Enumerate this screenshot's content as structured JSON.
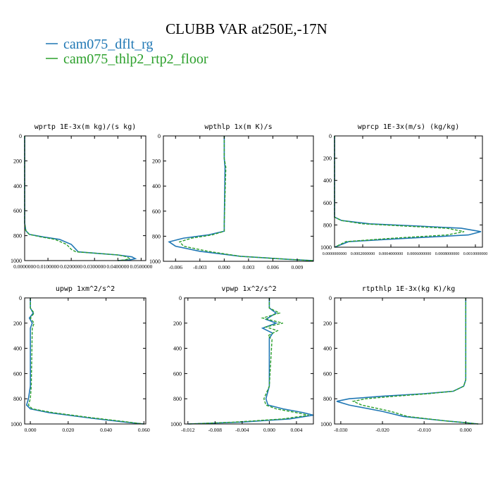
{
  "figure": {
    "title": "CLUBB VAR at250E,-17N",
    "legend": [
      {
        "label": "cam075_dflt_rg",
        "color": "#1f77b4"
      },
      {
        "label": "cam075_thlp2_rtp2_floor",
        "color": "#2ca02c"
      }
    ]
  },
  "chart_data": [
    {
      "type": "line",
      "title": "wprtp  1E-3x(m kg)/(s kg)",
      "xlim": [
        0,
        0.052
      ],
      "ylim": [
        0,
        1000
      ],
      "y_inverted": true,
      "xticks": [
        0,
        0.01,
        0.02,
        0.03,
        0.04,
        0.05
      ],
      "xtick_labels": [
        "0.0000000",
        "0.0100000",
        "0.0200000",
        "0.0300000",
        "0.0400000",
        "0.0500000"
      ],
      "yticks": [
        0,
        200,
        400,
        600,
        800,
        1000
      ],
      "ytick_labels": [
        "0",
        "200",
        "400",
        "600",
        "800",
        "1000"
      ],
      "series": [
        {
          "name": "cam075_dflt_rg",
          "points": [
            [
              0,
              0
            ],
            [
              0,
              700
            ],
            [
              0.0005,
              760
            ],
            [
              0.002,
              790
            ],
            [
              0.008,
              810
            ],
            [
              0.015,
              830
            ],
            [
              0.02,
              870
            ],
            [
              0.022,
              910
            ],
            [
              0.023,
              930
            ],
            [
              0.03,
              940
            ],
            [
              0.04,
              955
            ],
            [
              0.046,
              970
            ],
            [
              0.0475,
              985
            ],
            [
              0.045,
              995
            ],
            [
              0.04,
              1000
            ]
          ]
        },
        {
          "name": "cam075_thlp2_rtp2_floor",
          "points": [
            [
              0,
              0
            ],
            [
              0,
              700
            ],
            [
              0.0005,
              760
            ],
            [
              0.002,
              790
            ],
            [
              0.007,
              810
            ],
            [
              0.013,
              830
            ],
            [
              0.018,
              870
            ],
            [
              0.02,
              910
            ],
            [
              0.022,
              930
            ],
            [
              0.03,
              940
            ],
            [
              0.04,
              955
            ],
            [
              0.044,
              970
            ],
            [
              0.045,
              985
            ],
            [
              0.043,
              995
            ],
            [
              0.04,
              1000
            ]
          ]
        }
      ]
    },
    {
      "type": "line",
      "title": "wpthlp  1x(m K)/s",
      "xlim": [
        -0.0075,
        0.011
      ],
      "ylim": [
        0,
        1000
      ],
      "y_inverted": true,
      "xticks": [
        -0.006,
        -0.003,
        0,
        0.003,
        0.006,
        0.009
      ],
      "xtick_labels": [
        "-0.006",
        "-0.003",
        "0.000",
        "0.003",
        "0.006",
        "0.009"
      ],
      "yticks": [
        0,
        200,
        400,
        600,
        800,
        1000
      ],
      "ytick_labels": [
        "0",
        "200",
        "400",
        "600",
        "800",
        "1000"
      ],
      "series": [
        {
          "name": "cam075_dflt_rg",
          "points": [
            [
              0,
              0
            ],
            [
              0,
              180
            ],
            [
              0.0001,
              250
            ],
            [
              0,
              700
            ],
            [
              0,
              760
            ],
            [
              -0.002,
              790
            ],
            [
              -0.005,
              815
            ],
            [
              -0.0068,
              845
            ],
            [
              -0.006,
              880
            ],
            [
              -0.003,
              920
            ],
            [
              0.002,
              960
            ],
            [
              0.008,
              985
            ],
            [
              0.011,
              995
            ]
          ]
        },
        {
          "name": "cam075_thlp2_rtp2_floor",
          "points": [
            [
              0,
              0
            ],
            [
              0,
              180
            ],
            [
              0.0002,
              250
            ],
            [
              0,
              700
            ],
            [
              0,
              760
            ],
            [
              -0.0015,
              790
            ],
            [
              -0.004,
              815
            ],
            [
              -0.0055,
              845
            ],
            [
              -0.005,
              880
            ],
            [
              -0.002,
              920
            ],
            [
              0.002,
              960
            ],
            [
              0.008,
              985
            ],
            [
              0.011,
              995
            ]
          ]
        }
      ]
    },
    {
      "type": "line",
      "title": "wprcp  1E-3x(m/s) (kg/kg)",
      "xlim": [
        0,
        0.00105
      ],
      "ylim": [
        0,
        1000
      ],
      "y_inverted": true,
      "xticks": [
        0,
        0.0002,
        0.0004,
        0.0006,
        0.0008,
        0.001
      ],
      "xtick_labels": [
        "0.0000000000",
        "0.0002000000",
        "0.0004000000",
        "0.0006000000",
        "0.0008000000",
        "0.0010000000"
      ],
      "yticks": [
        0,
        200,
        400,
        600,
        800,
        1000
      ],
      "ytick_labels": [
        "0",
        "200",
        "400",
        "600",
        "800",
        "1000"
      ],
      "series": [
        {
          "name": "cam075_dflt_rg",
          "points": [
            [
              0,
              0
            ],
            [
              0,
              730
            ],
            [
              5e-05,
              760
            ],
            [
              0.00025,
              790
            ],
            [
              0.0006,
              810
            ],
            [
              0.0009,
              830
            ],
            [
              0.00104,
              860
            ],
            [
              0.00095,
              890
            ],
            [
              0.0005,
              920
            ],
            [
              0.0001,
              950
            ],
            [
              0,
              1000
            ]
          ]
        },
        {
          "name": "cam075_thlp2_rtp2_floor",
          "points": [
            [
              0,
              0
            ],
            [
              0,
              730
            ],
            [
              5e-05,
              760
            ],
            [
              0.0002,
              790
            ],
            [
              0.0005,
              810
            ],
            [
              0.0008,
              830
            ],
            [
              0.00092,
              860
            ],
            [
              0.0008,
              890
            ],
            [
              0.0004,
              920
            ],
            [
              8e-05,
              950
            ],
            [
              0,
              1000
            ]
          ]
        }
      ]
    },
    {
      "type": "line",
      "title": "upwp  1xm^2/s^2",
      "xlim": [
        -0.003,
        0.061
      ],
      "ylim": [
        0,
        1000
      ],
      "y_inverted": true,
      "xticks": [
        0,
        0.02,
        0.04,
        0.06
      ],
      "xtick_labels": [
        "0.000",
        "0.020",
        "0.040",
        "0.060"
      ],
      "yticks": [
        0,
        200,
        400,
        600,
        800,
        1000
      ],
      "ytick_labels": [
        "0",
        "200",
        "400",
        "600",
        "800",
        "1000"
      ],
      "series": [
        {
          "name": "cam075_dflt_rg",
          "points": [
            [
              0,
              0
            ],
            [
              0,
              80
            ],
            [
              0.0015,
              120
            ],
            [
              -0.0005,
              160
            ],
            [
              0.001,
              200
            ],
            [
              0,
              240
            ],
            [
              0,
              700
            ],
            [
              -0.001,
              800
            ],
            [
              -0.002,
              850
            ],
            [
              0,
              880
            ],
            [
              0.01,
              910
            ],
            [
              0.03,
              950
            ],
            [
              0.05,
              985
            ],
            [
              0.06,
              1000
            ]
          ]
        },
        {
          "name": "cam075_thlp2_rtp2_floor",
          "points": [
            [
              0,
              0
            ],
            [
              0,
              80
            ],
            [
              0.002,
              120
            ],
            [
              0,
              160
            ],
            [
              0.002,
              200
            ],
            [
              0.001,
              240
            ],
            [
              0.0005,
              700
            ],
            [
              0,
              800
            ],
            [
              -0.001,
              850
            ],
            [
              0.001,
              880
            ],
            [
              0.012,
              910
            ],
            [
              0.032,
              950
            ],
            [
              0.052,
              985
            ],
            [
              0.06,
              1000
            ]
          ]
        }
      ]
    },
    {
      "type": "line",
      "title": "vpwp  1x^2/s^2",
      "xlim": [
        -0.0125,
        0.0065
      ],
      "ylim": [
        0,
        1000
      ],
      "y_inverted": true,
      "xticks": [
        -0.012,
        -0.008,
        -0.004,
        0,
        0.004
      ],
      "xtick_labels": [
        "-0.012",
        "-0.008",
        "-0.004",
        "0.000",
        "0.004"
      ],
      "yticks": [
        0,
        200,
        400,
        600,
        800,
        1000
      ],
      "ytick_labels": [
        "0",
        "200",
        "400",
        "600",
        "800",
        "1000"
      ],
      "series": [
        {
          "name": "cam075_dflt_rg",
          "points": [
            [
              0,
              0
            ],
            [
              0,
              80
            ],
            [
              0.001,
              120
            ],
            [
              -0.0005,
              170
            ],
            [
              0.001,
              200
            ],
            [
              -0.001,
              240
            ],
            [
              0.0005,
              280
            ],
            [
              0,
              320
            ],
            [
              0,
              700
            ],
            [
              -0.0005,
              800
            ],
            [
              -0.0002,
              850
            ],
            [
              0.002,
              880
            ],
            [
              0.005,
              910
            ],
            [
              0.0065,
              930
            ],
            [
              0.003,
              960
            ],
            [
              -0.004,
              985
            ],
            [
              -0.012,
              1000
            ]
          ]
        },
        {
          "name": "cam075_thlp2_rtp2_floor",
          "points": [
            [
              0,
              0
            ],
            [
              0,
              80
            ],
            [
              0.0015,
              120
            ],
            [
              -0.001,
              160
            ],
            [
              0.002,
              200
            ],
            [
              -0.0005,
              230
            ],
            [
              0.0012,
              260
            ],
            [
              -0.0002,
              300
            ],
            [
              0.0004,
              330
            ],
            [
              0,
              700
            ],
            [
              -0.0008,
              800
            ],
            [
              -0.0005,
              850
            ],
            [
              0.001,
              880
            ],
            [
              0.004,
              910
            ],
            [
              0.0058,
              930
            ],
            [
              0.002,
              960
            ],
            [
              -0.005,
              985
            ],
            [
              -0.012,
              1000
            ]
          ]
        }
      ]
    },
    {
      "type": "line",
      "title": "rtpthlp  1E-3x(kg K)/kg",
      "xlim": [
        -0.0315,
        0.004
      ],
      "ylim": [
        0,
        1000
      ],
      "y_inverted": true,
      "xticks": [
        -0.03,
        -0.02,
        -0.01,
        0
      ],
      "xtick_labels": [
        "-0.030",
        "-0.020",
        "-0.010",
        "0.000"
      ],
      "yticks": [
        0,
        200,
        400,
        600,
        800,
        1000
      ],
      "ytick_labels": [
        "0",
        "200",
        "400",
        "600",
        "800",
        "1000"
      ],
      "series": [
        {
          "name": "cam075_dflt_rg",
          "points": [
            [
              0,
              0
            ],
            [
              0,
              650
            ],
            [
              -0.0005,
              700
            ],
            [
              -0.003,
              740
            ],
            [
              -0.01,
              760
            ],
            [
              -0.02,
              780
            ],
            [
              -0.028,
              800
            ],
            [
              -0.031,
              820
            ],
            [
              -0.028,
              850
            ],
            [
              -0.02,
              900
            ],
            [
              -0.015,
              940
            ],
            [
              -0.005,
              975
            ],
            [
              0,
              990
            ],
            [
              0.003,
              1000
            ]
          ]
        },
        {
          "name": "cam075_thlp2_rtp2_floor",
          "points": [
            [
              0,
              0
            ],
            [
              0,
              650
            ],
            [
              -0.0005,
              700
            ],
            [
              -0.003,
              740
            ],
            [
              -0.009,
              760
            ],
            [
              -0.017,
              780
            ],
            [
              -0.024,
              800
            ],
            [
              -0.027,
              820
            ],
            [
              -0.025,
              850
            ],
            [
              -0.018,
              900
            ],
            [
              -0.014,
              940
            ],
            [
              -0.005,
              975
            ],
            [
              0,
              990
            ],
            [
              0.003,
              1000
            ]
          ]
        }
      ]
    }
  ]
}
